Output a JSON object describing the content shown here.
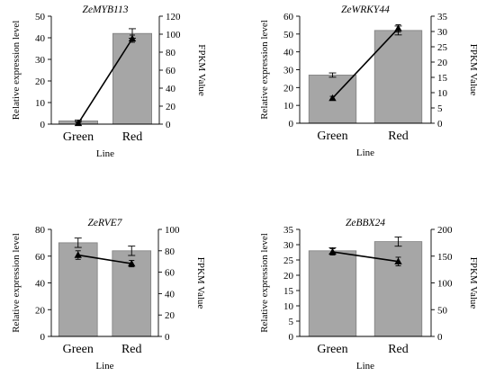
{
  "chart_data": [
    {
      "type": "bar",
      "title": "ZeMYB113",
      "xlabel": "Line",
      "ylabel": "Relative expression level",
      "y2label": "FPKM Value",
      "categories": [
        "Green",
        "Red"
      ],
      "ylim": [
        0,
        50
      ],
      "yticks": [
        0,
        10,
        20,
        30,
        40,
        50
      ],
      "y2lim": [
        0,
        120
      ],
      "y2ticks": [
        0,
        20,
        40,
        60,
        80,
        100,
        120
      ],
      "series": [
        {
          "type": "bar",
          "axis": "left",
          "color": "#a6a6a6",
          "values": [
            1.5,
            42
          ],
          "errors": [
            0.4,
            2.2
          ]
        },
        {
          "type": "line",
          "axis": "right",
          "color": "#000000",
          "marker": "triangle",
          "values": [
            1,
            95
          ],
          "errors": [
            1,
            4
          ]
        }
      ]
    },
    {
      "type": "bar",
      "title": "ZeWRKY44",
      "xlabel": "Line",
      "ylabel": "Relative expression level",
      "y2label": "FPKM Value",
      "categories": [
        "Green",
        "Red"
      ],
      "ylim": [
        0,
        60
      ],
      "yticks": [
        0,
        10,
        20,
        30,
        40,
        50,
        60
      ],
      "y2lim": [
        0,
        35
      ],
      "y2ticks": [
        0,
        5,
        10,
        15,
        20,
        25,
        30,
        35
      ],
      "series": [
        {
          "type": "bar",
          "axis": "left",
          "color": "#a6a6a6",
          "values": [
            27,
            52
          ],
          "errors": [
            1.2,
            2.5
          ]
        },
        {
          "type": "line",
          "axis": "right",
          "color": "#000000",
          "marker": "triangle",
          "values": [
            8.2,
            31
          ],
          "errors": [
            0.6,
            1.2
          ]
        }
      ]
    },
    {
      "type": "bar",
      "title": "ZeRVE7",
      "xlabel": "Line",
      "ylabel": "Relative expression level",
      "y2label": "FPKM Value",
      "categories": [
        "Green",
        "Red"
      ],
      "ylim": [
        0,
        80
      ],
      "yticks": [
        0,
        20,
        40,
        60,
        80
      ],
      "y2lim": [
        0,
        100
      ],
      "y2ticks": [
        0,
        20,
        40,
        60,
        80,
        100
      ],
      "series": [
        {
          "type": "bar",
          "axis": "left",
          "color": "#a6a6a6",
          "values": [
            70,
            64
          ],
          "errors": [
            3.5,
            3.5
          ]
        },
        {
          "type": "line",
          "axis": "right",
          "color": "#000000",
          "marker": "triangle",
          "values": [
            76,
            68
          ],
          "errors": [
            4,
            3
          ]
        }
      ]
    },
    {
      "type": "bar",
      "title": "ZeBBX24",
      "xlabel": "Line",
      "ylabel": "Relative expression level",
      "y2label": "FPKM Value",
      "categories": [
        "Green",
        "Red"
      ],
      "ylim": [
        0,
        35
      ],
      "yticks": [
        0,
        5,
        10,
        15,
        20,
        25,
        30,
        35
      ],
      "y2lim": [
        0,
        200
      ],
      "y2ticks": [
        0,
        50,
        100,
        150,
        200
      ],
      "series": [
        {
          "type": "bar",
          "axis": "left",
          "color": "#a6a6a6",
          "values": [
            28,
            31
          ],
          "errors": [
            1,
            1.5
          ]
        },
        {
          "type": "line",
          "axis": "right",
          "color": "#000000",
          "marker": "triangle",
          "values": [
            158,
            140
          ],
          "errors": [
            6,
            8
          ]
        }
      ]
    }
  ]
}
